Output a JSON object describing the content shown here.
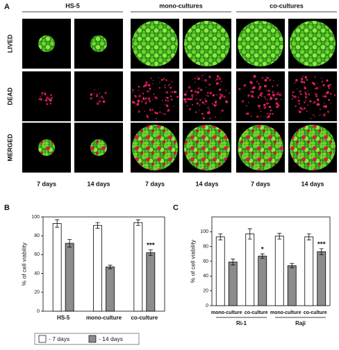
{
  "figure_a": {
    "label": "A",
    "columns": [
      "HS-5",
      "mono-cultures",
      "co-cultures"
    ],
    "rows": [
      "LIVED",
      "DEAD",
      "MERGED"
    ],
    "days": [
      "7 days",
      "14 days",
      "7 days",
      "14 days",
      "7 days",
      "14 days"
    ]
  },
  "chart_data": [
    {
      "type": "bar",
      "panel": "B",
      "ylabel": "% of cell viability",
      "categories": [
        "HS-5",
        "mono-culture",
        "co-culture"
      ],
      "ylim": [
        0,
        100
      ],
      "yticks": [
        0,
        20,
        40,
        60,
        80,
        100
      ],
      "series": [
        {
          "name": "- 7 days",
          "color": "#ffffff",
          "values": [
            93,
            91,
            94
          ],
          "errors": [
            4,
            3,
            3
          ],
          "significance": [
            null,
            null,
            null
          ]
        },
        {
          "name": "- 14 days",
          "color": "#8c8c8c",
          "values": [
            72,
            47,
            62
          ],
          "errors": [
            4,
            2,
            3
          ],
          "significance": [
            null,
            null,
            "***"
          ]
        }
      ]
    },
    {
      "type": "bar",
      "panel": "C",
      "ylabel": "% of cell viability",
      "categories": [
        "mono-culture",
        "co-culture",
        "mono-culture",
        "co-culture"
      ],
      "groups": [
        "Ri-1",
        "Raji"
      ],
      "ylim": [
        0,
        120
      ],
      "yticks": [
        0,
        20,
        40,
        60,
        80,
        100
      ],
      "series": [
        {
          "color": "#ffffff",
          "values": [
            93,
            97,
            94,
            93
          ],
          "errors": [
            4,
            7,
            4,
            4
          ],
          "significance": [
            null,
            null,
            null,
            null
          ]
        },
        {
          "color": "#8c8c8c",
          "values": [
            59,
            67,
            54,
            73
          ],
          "errors": [
            4,
            3,
            3,
            4
          ],
          "significance": [
            null,
            "*",
            null,
            "***"
          ]
        }
      ]
    }
  ]
}
